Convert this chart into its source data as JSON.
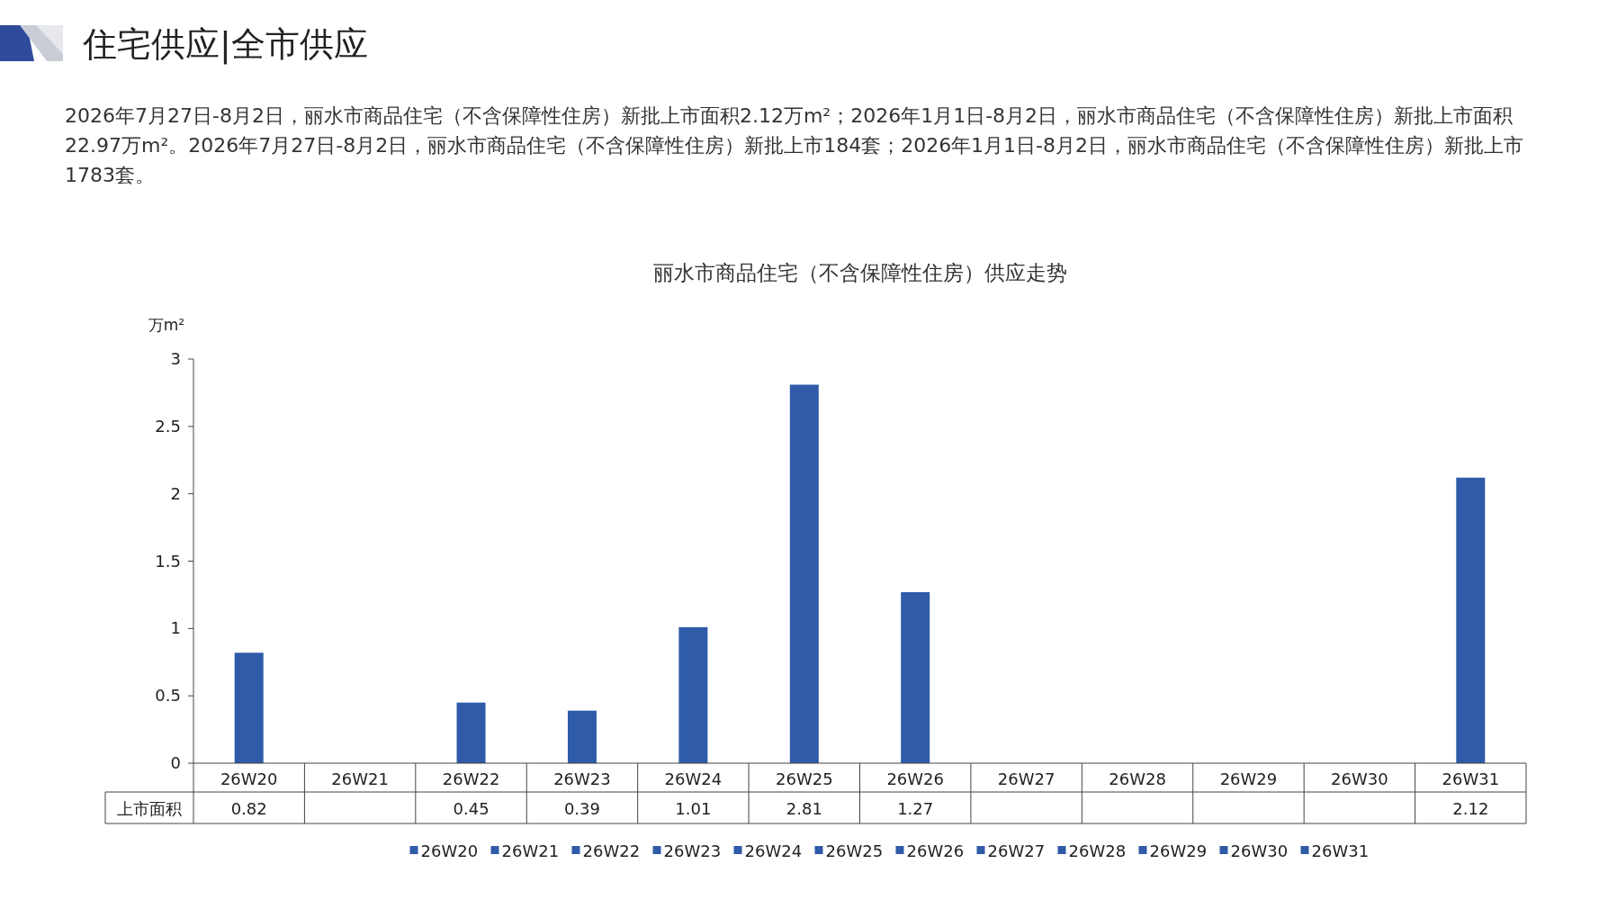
{
  "chart_data": {
    "type": "bar",
    "title": "丽水市商品住宅（不含保障性住房）供应走势",
    "ylabel": "万m²",
    "annotations": [
      "住宅供应|全市供应",
      "2026年7月27日-8月2日，丽水市商品住宅（不含保障性住房）新批上市面积2.12万m²；2026年1月1日-8月2日，丽水市商品住宅（不含保障性住房）新批上市面积22.97万m²。2026年7月27日-8月2日，丽水市商品住宅（不含保障性住房）新批上市184套；2026年1月1日-8月2日，丽水市商品住宅（不含保障性住房）新批上市1783套。"
    ],
    "categories": [
      "26W20",
      "26W21",
      "26W22",
      "26W23",
      "26W24",
      "26W25",
      "26W26",
      "26W27",
      "26W28",
      "26W29",
      "26W30",
      "26W31"
    ],
    "series": [
      {
        "name": "上市面积",
        "colors": [
          "#2f5ba8",
          "#2f5ba8",
          "#2f5ba8",
          "#2f5ba8",
          "#2f5ba8",
          "#2f5ba8",
          "#2f5ba8",
          "#2f5ba8",
          "#2f5ba8",
          "#2f5ba8",
          "#2f5ba8",
          "#2f5ba8"
        ],
        "values": [
          0.82,
          null,
          0.45,
          0.39,
          1.01,
          2.81,
          1.27,
          null,
          null,
          null,
          null,
          2.12
        ]
      }
    ],
    "ylim": [
      0,
      3
    ],
    "yticks": [
      0,
      0.5,
      1,
      1.5,
      2,
      2.5,
      3
    ],
    "data_labels": true,
    "legend": "bottom",
    "grid": false
  }
}
